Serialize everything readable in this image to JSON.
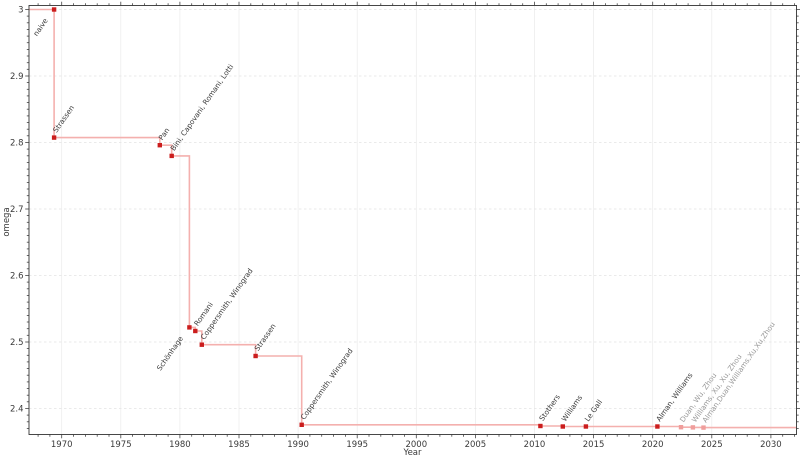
{
  "chart_data": {
    "type": "line",
    "step_style": "pre",
    "title": "",
    "xlabel": "Year",
    "ylabel": "omega",
    "xlim": [
      1967.23,
      2032.17
    ],
    "ylim": [
      2.3609,
      3.006
    ],
    "x_major_ticks": [
      1970,
      1975,
      1980,
      1985,
      1990,
      1995,
      2000,
      2005,
      2010,
      2015,
      2020,
      2025,
      2030
    ],
    "x_minor_step": 1,
    "y_major_ticks": [
      2.4,
      2.5,
      2.6,
      2.7,
      2.8,
      2.9,
      3.0
    ],
    "y_tick_labels": [
      "2.4",
      "2.5",
      "2.6",
      "2.7",
      "2.8",
      "2.9",
      "3"
    ],
    "y_minor_step": 0.01,
    "grid": {
      "vertical": "solid",
      "horizontal": "dashed"
    },
    "legend": "none",
    "points": [
      {
        "label": "naive",
        "year": 1969,
        "x": 1969.35,
        "omega": 3.0,
        "status": "published",
        "label_side": "below"
      },
      {
        "label": "Strassen",
        "year": 1969,
        "x": 1969.35,
        "omega": 2.8074,
        "status": "published",
        "label_side": "above"
      },
      {
        "label": "Pan",
        "year": 1978,
        "x": 1978.3,
        "omega": 2.796,
        "status": "published",
        "label_side": "above"
      },
      {
        "label": "Bini, Capovani, Romani, Lotti",
        "year": 1979,
        "x": 1979.3,
        "omega": 2.7799,
        "status": "published",
        "label_side": "above"
      },
      {
        "label": "Schönhage",
        "year": 1981,
        "x": 1980.8,
        "omega": 2.522,
        "status": "published",
        "label_side": "below"
      },
      {
        "label": "Romani",
        "year": 1981,
        "x": 1981.3,
        "omega": 2.5166,
        "status": "published",
        "label_side": "above"
      },
      {
        "label": "Coppersmith, Winograd",
        "year": 1982,
        "x": 1981.85,
        "omega": 2.496,
        "status": "published",
        "label_side": "above"
      },
      {
        "label": "Strassen",
        "year": 1986,
        "x": 1986.4,
        "omega": 2.479,
        "status": "published",
        "label_side": "above"
      },
      {
        "label": "Coppersmith, Winograd",
        "year": 1990,
        "x": 1990.3,
        "omega": 2.3755,
        "status": "published",
        "label_side": "above"
      },
      {
        "label": "Stothers",
        "year": 2010,
        "x": 2010.5,
        "omega": 2.3737,
        "status": "published",
        "label_side": "above"
      },
      {
        "label": "Williams",
        "year": 2012,
        "x": 2012.4,
        "omega": 2.3729,
        "status": "published",
        "label_side": "above"
      },
      {
        "label": "Le Gall",
        "year": 2014,
        "x": 2014.35,
        "omega": 2.37287,
        "status": "published",
        "label_side": "above"
      },
      {
        "label": "Alman, Williams",
        "year": 2020,
        "x": 2020.4,
        "omega": 2.37286,
        "status": "published",
        "label_side": "above"
      },
      {
        "label": "Duan, Wu, Zhou",
        "year": 2022,
        "x": 2022.4,
        "omega": 2.37188,
        "status": "preprint",
        "label_side": "above"
      },
      {
        "label": "Williams, Xu, Xu, Zhou",
        "year": 2023,
        "x": 2023.4,
        "omega": 2.371552,
        "status": "preprint",
        "label_side": "above"
      },
      {
        "label": "Alman,Duan,Williams,Xu,Xu,Zhou",
        "year": 2024,
        "x": 2024.3,
        "omega": 2.371339,
        "status": "preprint",
        "label_side": "above"
      }
    ],
    "colors": {
      "line": "#f4b0ae",
      "marker": "#cb1d1d",
      "preprint_marker": "#f09e9c",
      "label": "#3d3d3d",
      "preprint_label": "#9b9b9b",
      "grid_vertical": "#ededed",
      "grid_horizontal": "#e3e3e3",
      "frame": "#333333",
      "tick": "#444444",
      "tick_label": "#3a3a3a",
      "background": "#ffffff"
    }
  }
}
